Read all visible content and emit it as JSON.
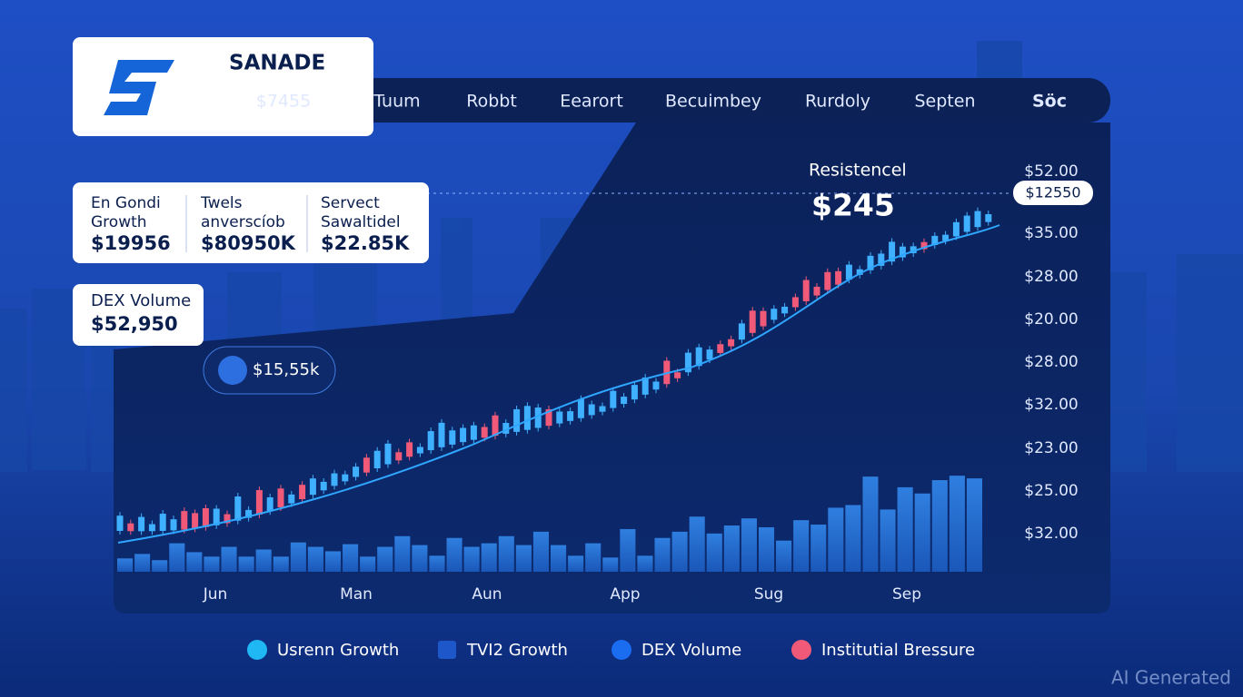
{
  "brand": "SANADE",
  "nav": [
    "$7455",
    "Tuum",
    "Robbt",
    "Eearort",
    "Becuimbey",
    "Rurdoly",
    "Septen",
    "Söc"
  ],
  "stats": [
    {
      "label": [
        "En Gondi",
        "Growth"
      ],
      "value": "$19956"
    },
    {
      "label": [
        "Twels",
        "anverscíob"
      ],
      "value": "$80950K"
    },
    {
      "label": [
        "Servect",
        "Sawaltidel"
      ],
      "value": "$22.85K"
    }
  ],
  "dex": {
    "label": "DEX Volume",
    "value": "$52,950"
  },
  "badge": "$15,55k",
  "resistance": {
    "label": "Resistencel",
    "value": "$245"
  },
  "price_tag": "$12550",
  "y_axis": [
    "$52.00",
    "$35.00",
    "$28.00",
    "$20.00",
    "$28.00",
    "$32.00",
    "$23.00",
    "$25.00",
    "$32.00"
  ],
  "x_axis": [
    "Jun",
    "Man",
    "Aun",
    "App",
    "Sug",
    "Sep"
  ],
  "legend": [
    {
      "name": "Usrenn Growth",
      "color": "#1fb8f5"
    },
    {
      "name": "TVI2 Growth",
      "color": "#1d57c9"
    },
    {
      "name": "DEX Volume",
      "color": "#1a6cf0"
    },
    {
      "name": "Institutial Bressure",
      "color": "#f05a78"
    }
  ],
  "watermark": "AI Generated"
}
